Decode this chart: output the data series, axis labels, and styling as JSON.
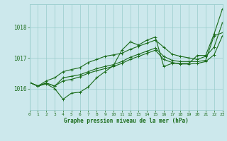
{
  "background_color": "#cce8ec",
  "grid_color": "#99cccc",
  "line_color": "#1a6b1a",
  "marker_color": "#1a6b1a",
  "text_color": "#1a6b1a",
  "xlabel": "Graphe pression niveau de la mer (hPa)",
  "xlim": [
    0,
    23
  ],
  "ylim": [
    1015.3,
    1018.75
  ],
  "yticks": [
    1016,
    1017,
    1018
  ],
  "xticks": [
    0,
    1,
    2,
    3,
    4,
    5,
    6,
    7,
    8,
    9,
    10,
    11,
    12,
    13,
    14,
    15,
    16,
    17,
    18,
    19,
    20,
    21,
    22,
    23
  ],
  "series": [
    [
      1016.2,
      1016.08,
      1016.15,
      1016.0,
      1015.65,
      1015.85,
      1015.88,
      1016.05,
      1016.35,
      1016.55,
      1016.75,
      1017.25,
      1017.52,
      1017.42,
      1017.58,
      1017.68,
      1016.72,
      1016.82,
      1016.82,
      1016.82,
      1017.08,
      1017.08,
      1017.78,
      1018.6
    ],
    [
      1016.2,
      1016.08,
      1016.18,
      1016.08,
      1016.25,
      1016.3,
      1016.38,
      1016.5,
      1016.58,
      1016.65,
      1016.72,
      1016.82,
      1016.95,
      1017.05,
      1017.15,
      1017.25,
      1016.95,
      1016.85,
      1016.8,
      1016.8,
      1016.82,
      1016.88,
      1017.1,
      1017.72
    ],
    [
      1016.2,
      1016.08,
      1016.18,
      1016.08,
      1016.35,
      1016.4,
      1016.45,
      1016.55,
      1016.65,
      1016.72,
      1016.78,
      1016.88,
      1017.02,
      1017.12,
      1017.22,
      1017.32,
      1017.05,
      1016.92,
      1016.88,
      1016.88,
      1016.88,
      1016.92,
      1017.72,
      1017.82
    ],
    [
      1016.2,
      1016.08,
      1016.25,
      1016.35,
      1016.55,
      1016.62,
      1016.68,
      1016.85,
      1016.95,
      1017.05,
      1017.1,
      1017.15,
      1017.28,
      1017.38,
      1017.48,
      1017.58,
      1017.35,
      1017.12,
      1017.05,
      1017.0,
      1016.95,
      1017.05,
      1017.35,
      1018.15
    ]
  ]
}
